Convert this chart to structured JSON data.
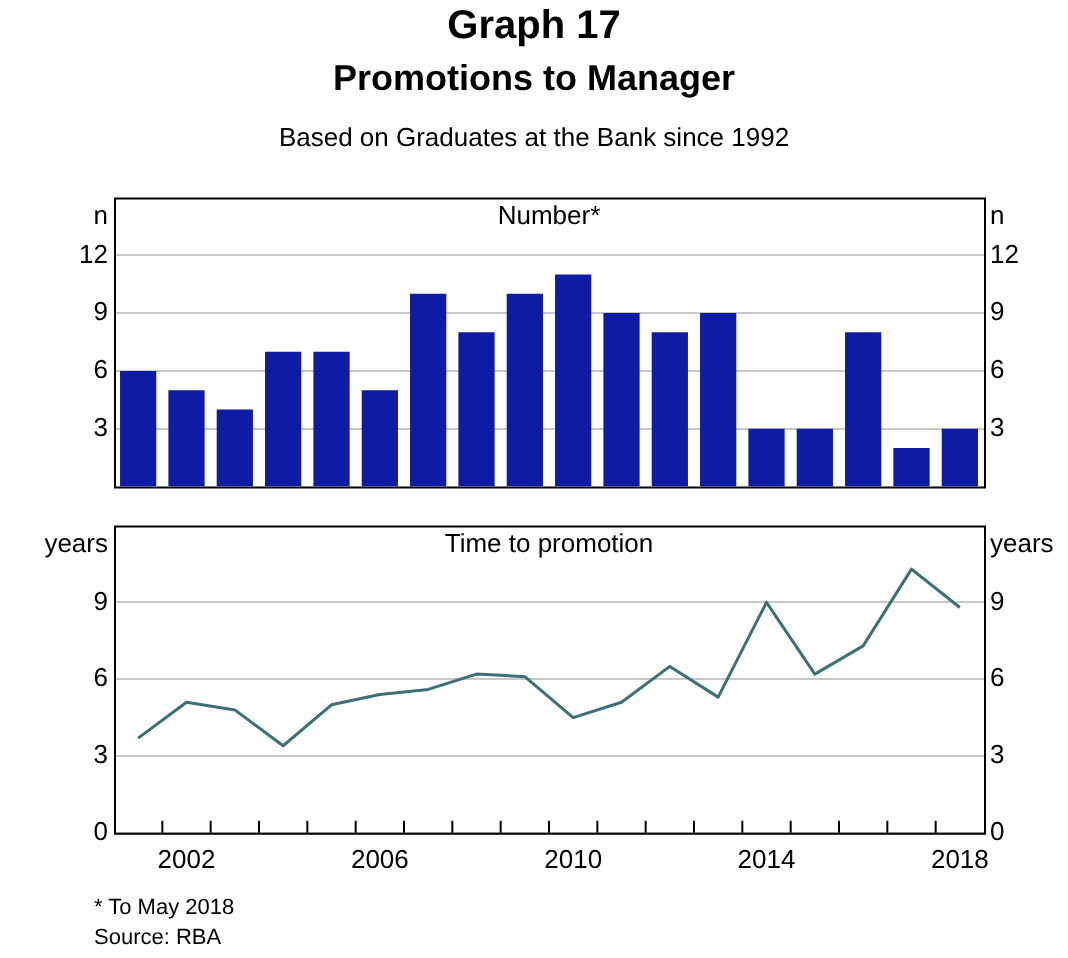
{
  "chart_data": [
    {
      "type": "bar",
      "title": "Number*",
      "annotations": [
        "Graph 17",
        "Promotions to Manager",
        "Based on Graduates at the Bank since 1992"
      ],
      "x": [
        2001,
        2002,
        2003,
        2004,
        2005,
        2006,
        2007,
        2008,
        2009,
        2010,
        2011,
        2012,
        2013,
        2014,
        2015,
        2016,
        2017,
        2018
      ],
      "values": [
        6,
        5,
        4,
        7,
        7,
        5,
        10,
        8,
        10,
        11,
        9,
        8,
        9,
        3,
        3,
        8,
        2,
        3
      ],
      "color": "#0d1ba5",
      "xlim": [
        2000.5,
        2018.5
      ],
      "xticks": [
        2002,
        2006,
        2010,
        2014,
        2018
      ],
      "ylim": [
        0,
        15
      ],
      "yticks": [
        3,
        6,
        9,
        12
      ],
      "y2lim": [
        0,
        15
      ],
      "y2ticks": [
        3,
        6,
        9,
        12
      ],
      "ylabel": "n",
      "y2label": "n",
      "grid": "y",
      "legend": false,
      "tick_labels": "y"
    },
    {
      "type": "line",
      "title": "Time to promotion",
      "annotations": [
        "* To May 2018",
        "Source: RBA"
      ],
      "x": [
        2001,
        2002,
        2003,
        2004,
        2005,
        2006,
        2007,
        2008,
        2009,
        2010,
        2011,
        2012,
        2013,
        2014,
        2015,
        2016,
        2017,
        2018
      ],
      "values": [
        3.7,
        5.1,
        4.8,
        3.4,
        5.0,
        5.4,
        5.6,
        6.2,
        6.1,
        4.5,
        5.1,
        6.5,
        5.3,
        9.0,
        6.2,
        7.3,
        10.3,
        8.8
      ],
      "color": "#3d6f78",
      "xlim": [
        2000.5,
        2018.5
      ],
      "xticks": [
        {
          "value": 2001.5,
          "label": null
        },
        2002,
        {
          "value": 2002.5,
          "label": null
        },
        {
          "value": 2003.5,
          "label": null
        },
        {
          "value": 2004.5,
          "label": null
        },
        {
          "value": 2005.5,
          "label": null
        },
        2006,
        {
          "value": 2006.5,
          "label": null
        },
        {
          "value": 2007.5,
          "label": null
        },
        {
          "value": 2008.5,
          "label": null
        },
        {
          "value": 2009.5,
          "label": null
        },
        2010,
        {
          "value": 2010.5,
          "label": null
        },
        {
          "value": 2011.5,
          "label": null
        },
        {
          "value": 2012.5,
          "label": null
        },
        {
          "value": 2013.5,
          "label": null
        },
        2014,
        {
          "value": 2014.5,
          "label": null
        },
        {
          "value": 2015.5,
          "label": null
        },
        {
          "value": 2016.5,
          "label": null
        },
        {
          "value": 2017.5,
          "label": null
        },
        2018
      ],
      "ylim": [
        0,
        12
      ],
      "yticks": [
        0,
        3,
        6,
        9
      ],
      "y2lim": [
        0,
        12
      ],
      "y2ticks": [
        0,
        3,
        6,
        9
      ],
      "ylabel": "years",
      "y2label": "years",
      "grid": "y",
      "legend": false,
      "marker": "none",
      "line_style": "solid"
    }
  ]
}
